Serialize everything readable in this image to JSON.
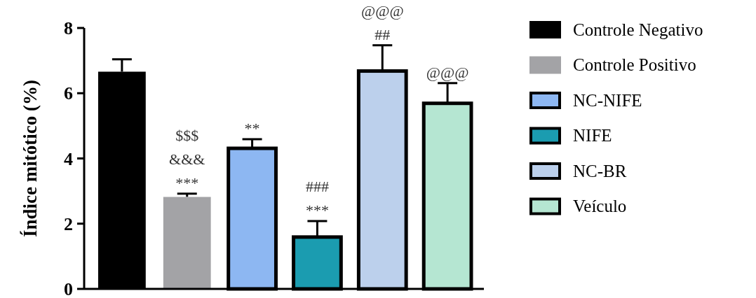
{
  "chart_data": {
    "type": "bar",
    "ylabel": "Índice mitótico (%)",
    "categories": [
      null,
      null,
      null,
      null,
      null,
      null
    ],
    "ylim": [
      0,
      8
    ],
    "yticks": [
      0,
      2,
      4,
      6,
      8
    ],
    "legend": "right",
    "grid": false,
    "series": [
      {
        "name": "Controle Negativo",
        "color": "#000000",
        "values": [
          6.66,
          null,
          null,
          null,
          null,
          null
        ],
        "errors": [
          0.38,
          null,
          null,
          null,
          null,
          null
        ]
      },
      {
        "name": "Controle Positivo",
        "color": "#a3a3a6",
        "values": [
          null,
          2.82,
          null,
          null,
          null,
          null
        ],
        "errors": [
          null,
          0.1,
          null,
          null,
          null,
          null
        ],
        "value_labels": [
          null,
          "$$$\n&&&\n***",
          null,
          null,
          null,
          null
        ]
      },
      {
        "name": "NC-NIFE",
        "color": "#8db7f2",
        "values": [
          null,
          null,
          4.31,
          null,
          null,
          null
        ],
        "errors": [
          null,
          null,
          0.28,
          null,
          null,
          null
        ],
        "value_labels": [
          null,
          null,
          "**",
          null,
          null,
          null
        ]
      },
      {
        "name": "NIFE",
        "color": "#1b9cb0",
        "values": [
          null,
          null,
          null,
          1.59,
          null,
          null
        ],
        "errors": [
          null,
          null,
          null,
          0.49,
          null,
          null
        ],
        "value_labels": [
          null,
          null,
          null,
          "###\n***",
          null,
          null
        ]
      },
      {
        "name": "NC-BR",
        "color": "#bcd0ec",
        "values": [
          null,
          null,
          null,
          null,
          6.68,
          null
        ],
        "errors": [
          null,
          null,
          null,
          null,
          0.79,
          null
        ],
        "value_labels": [
          null,
          null,
          null,
          null,
          "@@@\n##",
          null
        ]
      },
      {
        "name": "Veículo",
        "color": "#b5e6d2",
        "values": [
          null,
          null,
          null,
          null,
          null,
          5.69
        ],
        "errors": [
          null,
          null,
          null,
          null,
          null,
          0.62
        ],
        "value_labels": [
          null,
          null,
          null,
          null,
          null,
          "@@@"
        ]
      }
    ]
  }
}
